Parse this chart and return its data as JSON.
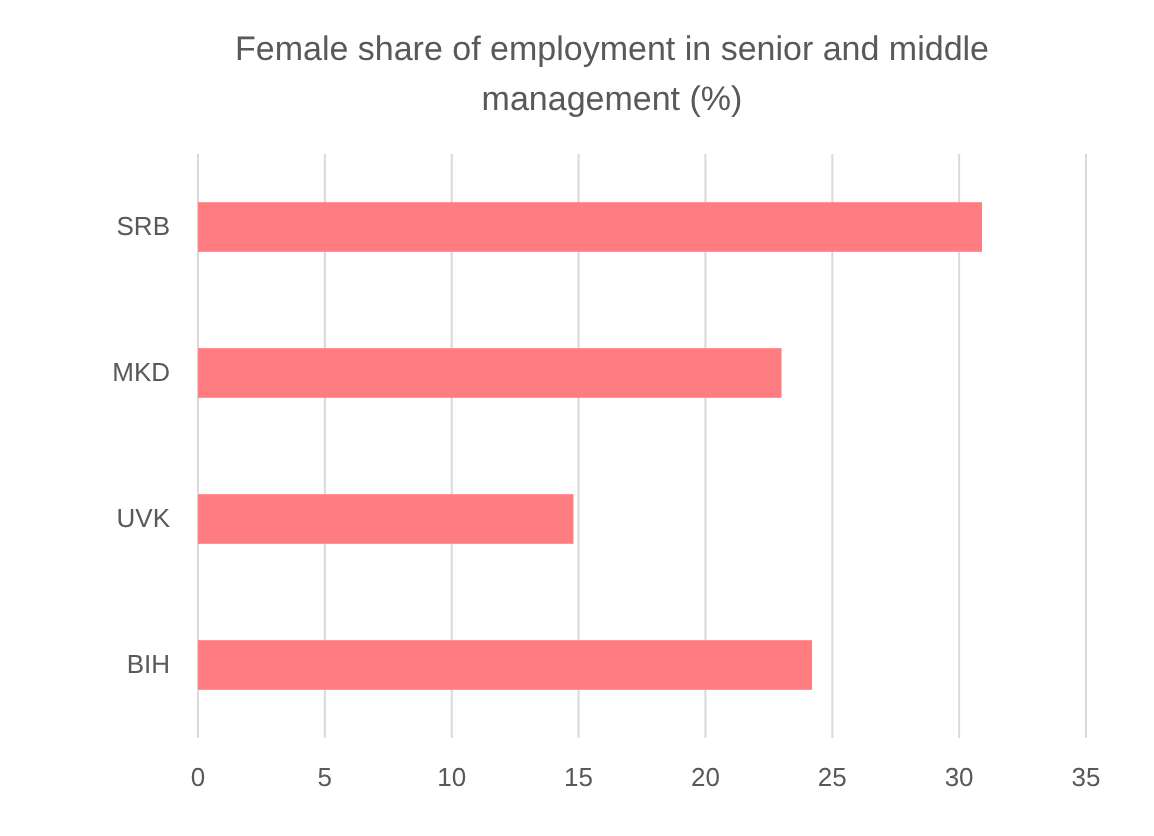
{
  "chart_data": {
    "type": "bar",
    "orientation": "horizontal",
    "title": "Female share of employment in senior and middle management (%)",
    "categories": [
      "SRB",
      "MKD",
      "UVK",
      "BIH"
    ],
    "values": [
      30.9,
      23.0,
      14.8,
      24.2
    ],
    "color": "#ff7c80",
    "xlim": [
      0,
      35
    ],
    "xticks": [
      0,
      5,
      10,
      15,
      20,
      25,
      30,
      35
    ],
    "grid": "x"
  }
}
